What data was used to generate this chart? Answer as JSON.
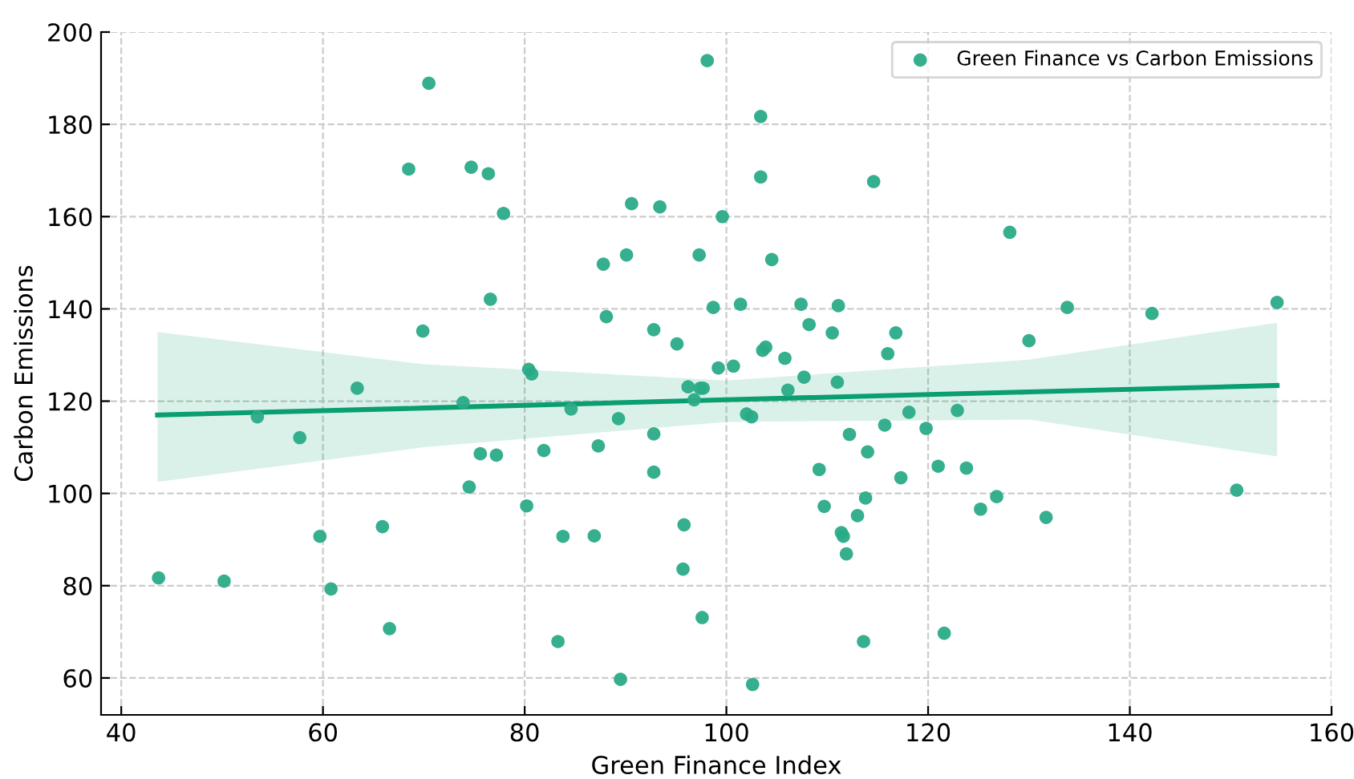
{
  "chart_data": {
    "type": "scatter",
    "xlabel": "Green Finance Index",
    "ylabel": "Carbon Emissions",
    "xlim": [
      38,
      160
    ],
    "ylim": [
      52,
      200
    ],
    "xticks": [
      40,
      60,
      80,
      100,
      120,
      140,
      160
    ],
    "yticks": [
      60,
      80,
      100,
      120,
      140,
      160,
      180,
      200
    ],
    "grid": true,
    "legend": "top right",
    "series": [
      {
        "name": "Green Finance vs Carbon Emissions",
        "marker": "circle",
        "color": "#2aab88",
        "x": [
          43.7,
          50.2,
          53.5,
          57.7,
          59.7,
          60.8,
          63.4,
          65.9,
          66.6,
          68.5,
          69.9,
          70.5,
          73.9,
          74.5,
          74.7,
          75.6,
          76.4,
          76.6,
          77.2,
          77.9,
          80.2,
          80.4,
          80.7,
          81.9,
          83.8,
          83.3,
          84.6,
          86.9,
          87.3,
          87.8,
          88.1,
          89.3,
          89.5,
          90.1,
          90.6,
          92.8,
          92.8,
          92.8,
          93.4,
          95.1,
          95.7,
          95.8,
          96.2,
          96.8,
          97.3,
          97.4,
          97.7,
          97.6,
          98.1,
          98.7,
          99.2,
          99.6,
          100.7,
          101.4,
          102.0,
          102.5,
          102.6,
          103.4,
          103.4,
          103.6,
          103.9,
          104.5,
          105.8,
          106.1,
          107.4,
          107.7,
          108.2,
          109.2,
          109.7,
          110.5,
          111.0,
          111.1,
          111.4,
          111.6,
          111.9,
          112.2,
          113.0,
          113.8,
          113.6,
          114.0,
          114.6,
          115.7,
          116.0,
          116.8,
          117.3,
          118.1,
          119.8,
          121.0,
          121.6,
          122.9,
          123.8,
          125.2,
          126.8,
          128.1,
          130.0,
          131.7,
          133.8,
          142.2,
          150.6,
          154.6
        ],
        "values": [
          81.7,
          81.0,
          116.6,
          112.1,
          90.7,
          79.3,
          122.8,
          92.8,
          70.7,
          170.3,
          135.2,
          188.9,
          119.7,
          101.4,
          170.7,
          108.6,
          169.3,
          142.1,
          108.3,
          160.7,
          97.3,
          126.9,
          125.9,
          109.3,
          90.7,
          67.9,
          118.3,
          90.8,
          110.3,
          149.7,
          138.3,
          116.2,
          59.7,
          151.7,
          162.8,
          135.5,
          104.6,
          112.9,
          162.1,
          132.4,
          83.6,
          93.2,
          123.1,
          120.3,
          151.7,
          122.8,
          122.8,
          73.1,
          193.8,
          140.3,
          127.2,
          160.0,
          127.6,
          141.0,
          117.2,
          116.6,
          58.6,
          181.7,
          168.6,
          131.0,
          131.7,
          150.7,
          129.3,
          122.4,
          141.0,
          125.2,
          136.6,
          105.2,
          97.2,
          134.8,
          124.1,
          140.7,
          91.5,
          90.7,
          86.9,
          112.8,
          95.2,
          99.0,
          67.9,
          109.0,
          167.6,
          114.8,
          130.3,
          134.8,
          103.4,
          117.6,
          114.1,
          105.9,
          69.7,
          118.0,
          105.5,
          96.6,
          99.3,
          156.6,
          133.1,
          94.8,
          140.3,
          139.0,
          100.7,
          141.4
        ]
      },
      {
        "type": "line",
        "color": "#0a9e70",
        "x": [
          43.6,
          70,
          100,
          130,
          154.6
        ],
        "values": [
          117.0,
          118.5,
          120.3,
          122.0,
          123.4
        ],
        "lower": [
          102.5,
          110.0,
          115.5,
          116.0,
          108.0
        ],
        "upper": [
          135.0,
          128.0,
          124.5,
          129.0,
          137.0
        ]
      }
    ]
  }
}
